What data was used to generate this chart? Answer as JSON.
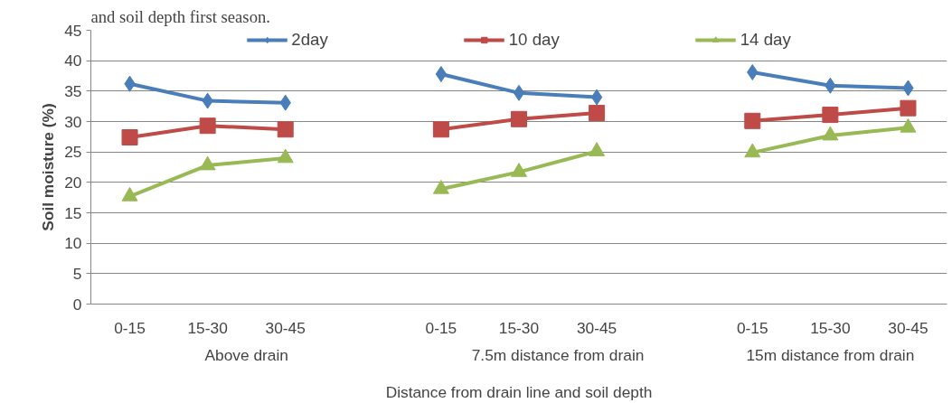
{
  "chart_data": {
    "type": "line",
    "ylabel": "Soil moisture (%)",
    "xlabel": "Distance from drain line and soil depth",
    "annotations": [
      "and soil depth first season.",
      "Above drain",
      "7.5m distance from drain",
      "15m distance from drain"
    ],
    "categories": [
      "0-15",
      "15-30",
      "30-45",
      null,
      "0-15",
      "15-30",
      "30-45",
      null,
      "0-15",
      "15-30",
      "30-45"
    ],
    "series": [
      {
        "name": "2day",
        "color": "#4a7ebb",
        "marker": "diamond",
        "values": [
          36.2,
          33.4,
          33.1,
          null,
          37.8,
          34.7,
          34.0,
          null,
          38.1,
          35.9,
          35.5
        ]
      },
      {
        "name": "10 day",
        "color": "#be4b48",
        "marker": "square",
        "values": [
          27.4,
          29.3,
          28.7,
          null,
          28.7,
          30.4,
          31.4,
          null,
          30.1,
          31.1,
          32.2
        ]
      },
      {
        "name": "14 day",
        "color": "#98b954",
        "marker": "triangle",
        "values": [
          17.7,
          22.8,
          24.0,
          null,
          18.9,
          21.7,
          25.1,
          null,
          24.9,
          27.7,
          29.0
        ]
      }
    ],
    "ylim": [
      0,
      45
    ],
    "yticks": [
      0,
      5,
      10,
      15,
      20,
      25,
      30,
      35,
      40,
      45
    ],
    "grid": "y",
    "legend": "top",
    "line_style": "solid"
  }
}
